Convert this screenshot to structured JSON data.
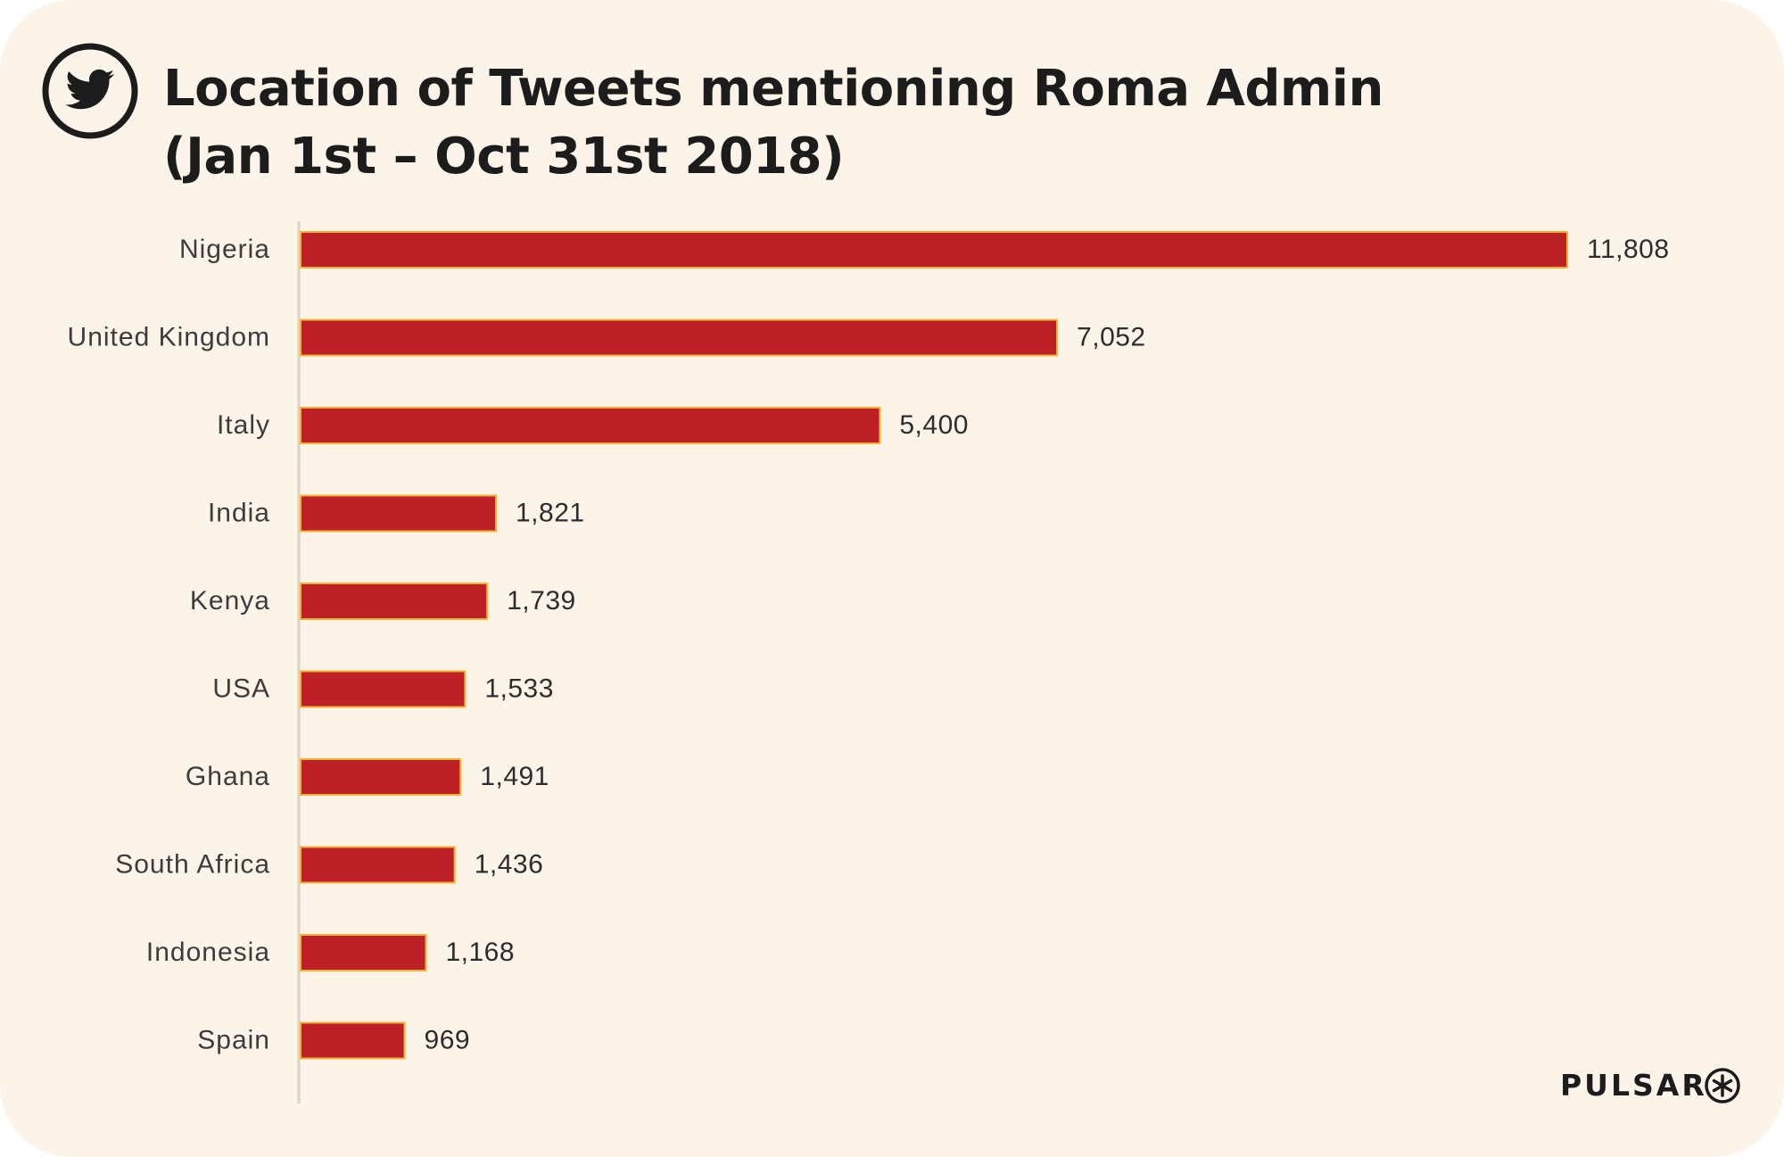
{
  "header": {
    "icon": "twitter-bird-icon",
    "title_line1": "Location of Tweets mentioning Roma Admin",
    "title_line2": "(Jan 1st – Oct 31st 2018)"
  },
  "brand": {
    "name": "PULSAR",
    "icon": "asterisk-circle-icon"
  },
  "colors": {
    "background": "#fdf4e9",
    "bar_fill": "#bd2027",
    "bar_stroke": "#f2b233",
    "text": "#1c1c1c",
    "axis": "#d8d1c6"
  },
  "chart_data": {
    "type": "bar",
    "orientation": "horizontal",
    "title": "Location of Tweets mentioning Roma Admin (Jan 1st – Oct 31st 2018)",
    "xlabel": "",
    "ylabel": "",
    "categories": [
      "Nigeria",
      "United Kingdom",
      "Italy",
      "India",
      "Kenya",
      "USA",
      "Ghana",
      "South Africa",
      "Indonesia",
      "Spain"
    ],
    "values": [
      11808,
      7052,
      5400,
      1821,
      1739,
      1533,
      1491,
      1436,
      1168,
      969
    ],
    "value_labels": [
      "11,808",
      "7,052",
      "5,400",
      "1,821",
      "1,739",
      "1,533",
      "1,491",
      "1,436",
      "1,168",
      "969"
    ],
    "xlim": [
      0,
      11808
    ],
    "grid": false,
    "legend": "none"
  }
}
